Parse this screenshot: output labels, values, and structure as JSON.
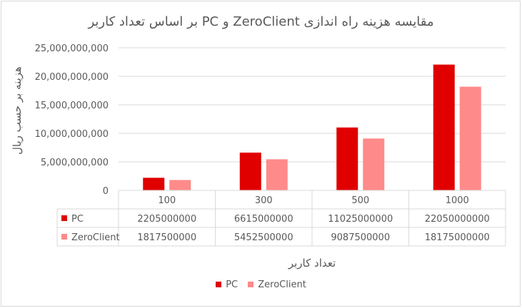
{
  "chart_data": {
    "type": "bar",
    "title": "مقایسه هزینه راه اندازی  ZeroClient و PC بر اساس تعداد کاربر",
    "xlabel": "تعداد کاربر",
    "ylabel": "هزینه بر حسب ریال",
    "categories": [
      "100",
      "300",
      "500",
      "1000"
    ],
    "series": [
      {
        "name": "PC",
        "color": "#e00000",
        "values": [
          2205000000,
          6615000000,
          11025000000,
          22050000000
        ],
        "labels": [
          "2205000000",
          "6615000000",
          "11025000000",
          "22050000000"
        ]
      },
      {
        "name": "ZeroClient",
        "color": "#ff8a8a",
        "values": [
          1817500000,
          5452500000,
          9087500000,
          18175000000
        ],
        "labels": [
          "1817500000",
          "5452500000",
          "9087500000",
          "18175000000"
        ]
      }
    ],
    "ylim": [
      0,
      25000000000
    ],
    "yticks": [
      0,
      5000000000,
      10000000000,
      15000000000,
      20000000000,
      25000000000
    ],
    "ytick_labels": [
      "0",
      "5,000,000,000",
      "10,000,000,000",
      "15,000,000,000",
      "20,000,000,000",
      "25,000,000,000"
    ],
    "grid": true,
    "legend_position": "bottom",
    "data_table": true
  }
}
